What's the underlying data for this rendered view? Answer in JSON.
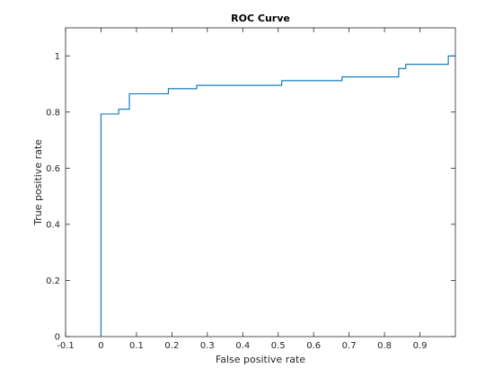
{
  "chart_data": {
    "type": "line",
    "title": "ROC Curve",
    "xlabel": "False positive rate",
    "ylabel": "True positive rate",
    "xlim": [
      -0.1,
      1.0
    ],
    "ylim": [
      0,
      1.1
    ],
    "x_ticks": [
      -0.1,
      0,
      0.1,
      0.2,
      0.3,
      0.4,
      0.5,
      0.6,
      0.7,
      0.8,
      0.9
    ],
    "x_tick_labels": [
      "-0.1",
      "0",
      "0.1",
      "0.2",
      "0.3",
      "0.4",
      "0.5",
      "0.6",
      "0.7",
      "0.8",
      "0.9"
    ],
    "y_ticks": [
      0,
      0.2,
      0.4,
      0.6,
      0.8,
      1.0
    ],
    "y_tick_labels": [
      "0",
      "0.2",
      "0.4",
      "0.6",
      "0.8",
      "1"
    ],
    "grid": false,
    "line_color": "#0072bd",
    "series": [
      {
        "step": true,
        "x": [
          0,
          0,
          0.05,
          0.05,
          0.08,
          0.08,
          0.19,
          0.19,
          0.27,
          0.27,
          0.51,
          0.51,
          0.68,
          0.68,
          0.84,
          0.84,
          0.86,
          0.86,
          0.98,
          0.98,
          1.0
        ],
        "y": [
          0,
          0.793,
          0.793,
          0.81,
          0.81,
          0.865,
          0.865,
          0.883,
          0.883,
          0.895,
          0.895,
          0.912,
          0.912,
          0.925,
          0.925,
          0.955,
          0.955,
          0.97,
          0.97,
          1.0,
          1.0
        ]
      }
    ]
  }
}
